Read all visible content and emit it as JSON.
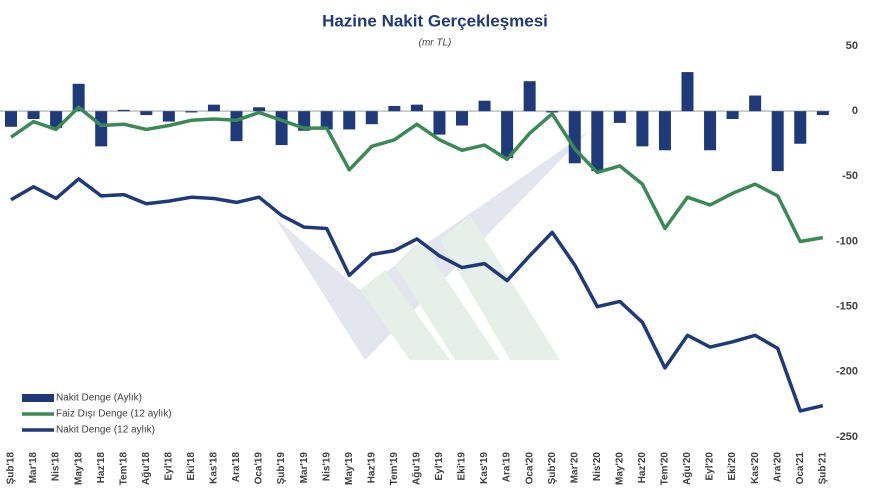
{
  "chart_data": {
    "type": "bar-line",
    "title": "Hazine Nakit Gerçekleşmesi",
    "subtitle": "(mr TL)",
    "categories": [
      "Şub'18",
      "Mar'18",
      "Nis'18",
      "May'18",
      "Haz'18",
      "Tem'18",
      "Ağu'18",
      "Eyl'18",
      "Eki'18",
      "Kas'18",
      "Ara'18",
      "Oca'19",
      "Şub'19",
      "Mar'19",
      "Nis'19",
      "May'19",
      "Haz'19",
      "Tem'19",
      "Ağu'19",
      "Eyl'19",
      "Eki'19",
      "Kas'19",
      "Ara'19",
      "Oca'20",
      "Şub'20",
      "Mar'20",
      "Nis'20",
      "May'20",
      "Haz'20",
      "Tem'20",
      "Ağu'20",
      "Eyl'20",
      "Eki'20",
      "Kas'20",
      "Ara'20",
      "Oca'21",
      "Şub'21"
    ],
    "series": [
      {
        "name": "Nakit Denge (Aylık)",
        "kind": "bar",
        "color": "#1f3a7a",
        "values": [
          -12,
          -6,
          -13,
          21,
          -27,
          1,
          -3,
          -8,
          -1,
          5,
          -23,
          3,
          -26,
          -15,
          -14,
          -14,
          -10,
          4,
          5,
          -18,
          -11,
          8,
          -36,
          23,
          -1,
          -40,
          -46,
          -9,
          -27,
          -30,
          30,
          -30,
          -6,
          12,
          -46,
          -25,
          -3
        ]
      },
      {
        "name": "Faiz Dışı Denge (12 aylık)",
        "kind": "line",
        "color": "#3a8a55",
        "values": [
          -20,
          -8,
          -14,
          3,
          -11,
          -10,
          -14,
          -11,
          -7,
          -6,
          -7,
          -1,
          -7,
          -13,
          -13,
          -45,
          -27,
          -22,
          -10,
          -22,
          -30,
          -26,
          -37,
          -17,
          -2,
          -29,
          -47,
          -42,
          -56,
          -90,
          -66,
          -72,
          -63,
          -56,
          -65,
          -100,
          -97
        ]
      },
      {
        "name": "Nakit Denge (12 aylık)",
        "kind": "line",
        "color": "#1f3a7a",
        "values": [
          -68,
          -58,
          -67,
          -52,
          -65,
          -64,
          -71,
          -69,
          -66,
          -67,
          -70,
          -66,
          -80,
          -89,
          -90,
          -126,
          -110,
          -107,
          -98,
          -111,
          -120,
          -117,
          -130,
          -111,
          -93,
          -118,
          -150,
          -146,
          -162,
          -197,
          -172,
          -181,
          -177,
          -172,
          -182,
          -230,
          -226
        ]
      }
    ],
    "ylim": [
      -250,
      50
    ],
    "yticks": [
      50,
      0,
      -50,
      -100,
      -150,
      -200,
      -250
    ],
    "grid": false,
    "legend": "lower left"
  }
}
